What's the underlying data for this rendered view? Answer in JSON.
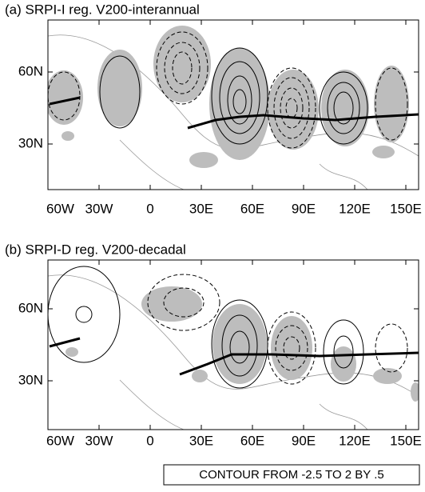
{
  "panels": [
    {
      "title": "(a) SRPI-I reg. V200-interannual",
      "y_tick_labels": [
        "60N",
        "30N"
      ],
      "x_tick_labels": [
        "60W",
        "30W",
        "0",
        "30E",
        "60E",
        "90E",
        "120E",
        "150E"
      ]
    },
    {
      "title": "(b) SRPI-D reg. V200-decadal",
      "y_tick_labels": [
        "60N",
        "30N"
      ],
      "x_tick_labels": [
        "60W",
        "30W",
        "0",
        "30E",
        "60E",
        "90E",
        "120E",
        "150E"
      ]
    }
  ],
  "footer": "CONTOUR FROM -2.5 TO 2 BY .5"
}
